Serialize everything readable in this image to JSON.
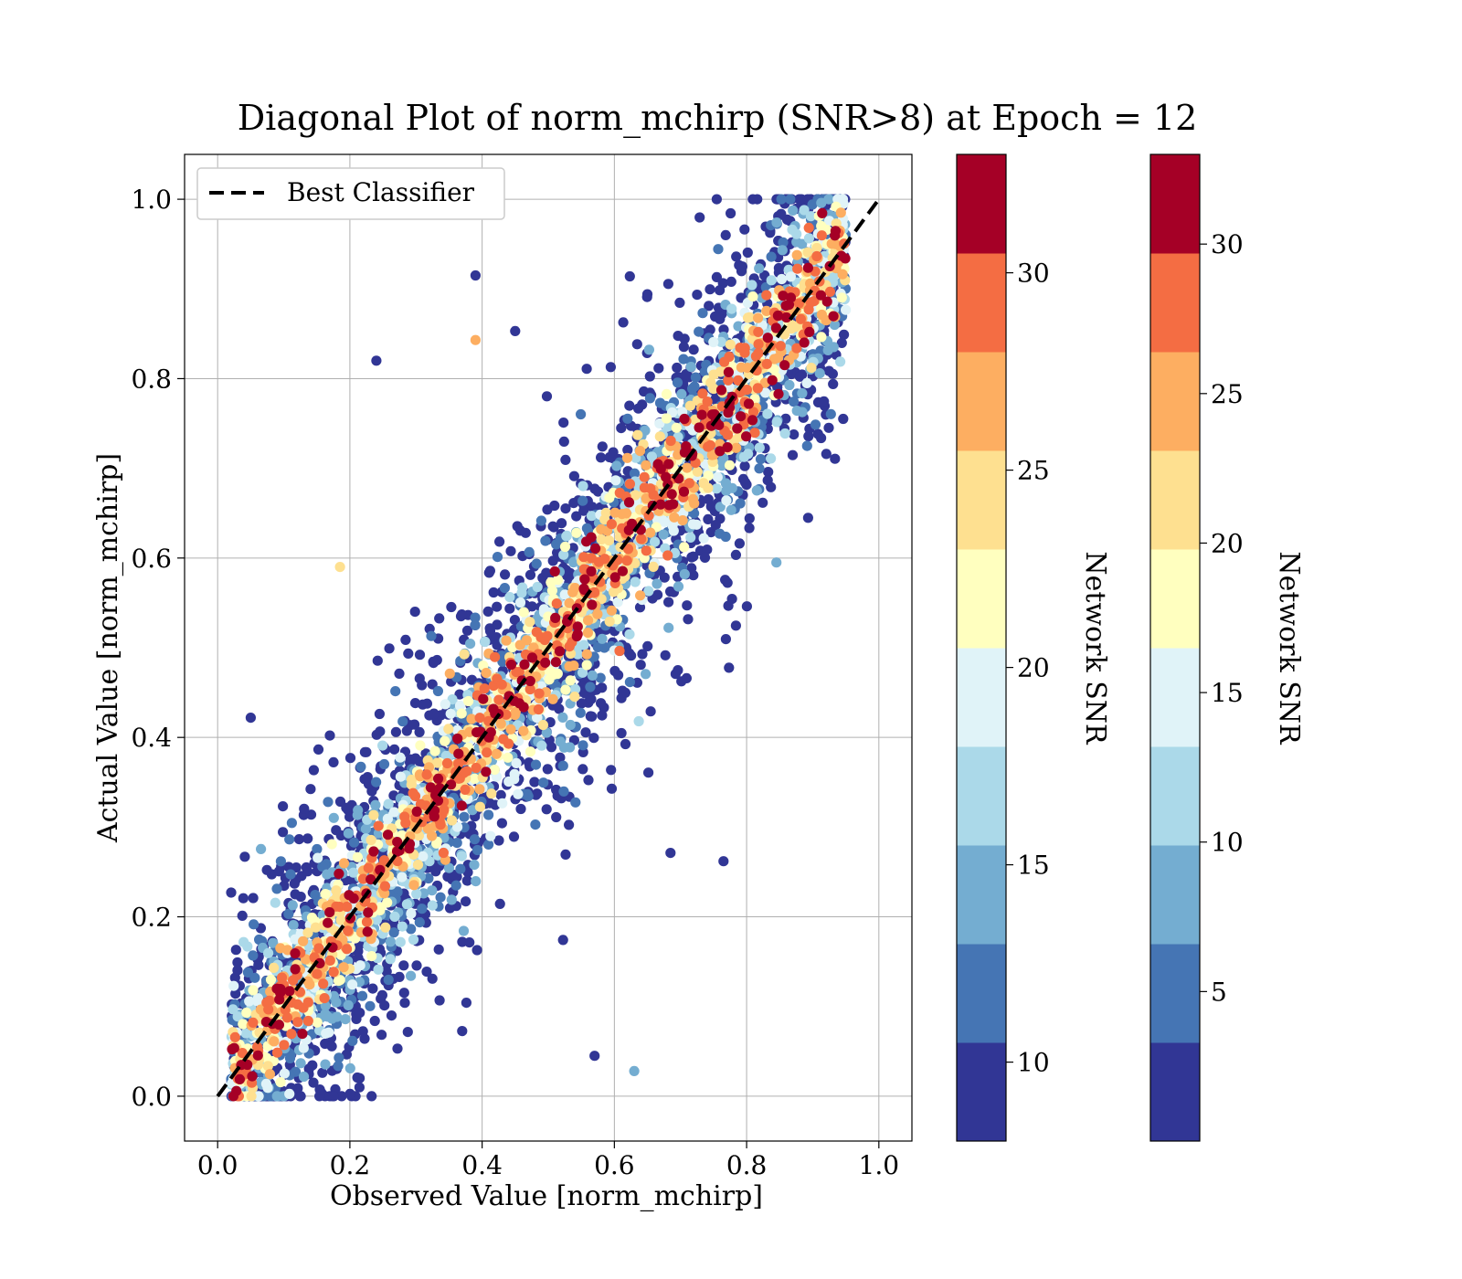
{
  "chart_data": {
    "type": "scatter",
    "title": "Diagonal Plot of norm_mchirp (SNR>8) at Epoch = 12",
    "xlabel": "Observed Value [norm_mchirp]",
    "ylabel": "Actual Value [norm_mchirp]",
    "xlim": [
      -0.05,
      1.05
    ],
    "ylim": [
      -0.05,
      1.05
    ],
    "xticks": [
      "0.0",
      "0.2",
      "0.4",
      "0.6",
      "0.8",
      "1.0"
    ],
    "yticks": [
      "0.0",
      "0.2",
      "0.4",
      "0.6",
      "0.8",
      "1.0"
    ],
    "grid": true,
    "legend": {
      "placement": "upper-left",
      "entries": [
        "Best Classifier"
      ]
    },
    "reference_line": {
      "name": "Best Classifier",
      "style": "dashed",
      "color": "#000000",
      "x": [
        0,
        1
      ],
      "y": [
        0,
        1
      ]
    },
    "colorbars": [
      {
        "label": "Network SNR",
        "range": [
          8,
          33
        ],
        "ticks": [
          "10",
          "15",
          "20",
          "25",
          "30"
        ],
        "tick_values": [
          10,
          15,
          20,
          25,
          30
        ],
        "colors": [
          "#313695",
          "#4575b4",
          "#74add1",
          "#abd9e9",
          "#e0f3f8",
          "#ffffbf",
          "#fee090",
          "#fdae61",
          "#f46d43",
          "#a50026"
        ]
      },
      {
        "label": "Network SNR",
        "range": [
          0,
          33
        ],
        "ticks": [
          "5",
          "10",
          "15",
          "20",
          "25",
          "30"
        ],
        "tick_values": [
          5,
          10,
          15,
          20,
          25,
          30
        ],
        "colors": [
          "#313695",
          "#4575b4",
          "#74add1",
          "#abd9e9",
          "#e0f3f8",
          "#ffffbf",
          "#fee090",
          "#fdae61",
          "#f46d43",
          "#a50026"
        ]
      }
    ],
    "points": {
      "count": 5000,
      "relation": "actual ≈ observed with scatter; higher SNR points lie closer to the diagonal",
      "highlighted": [
        {
          "x": 0.39,
          "y": 0.915,
          "snr": 9
        },
        {
          "x": 0.39,
          "y": 0.843,
          "snr": 26
        },
        {
          "x": 0.24,
          "y": 0.82,
          "snr": 9
        },
        {
          "x": 0.45,
          "y": 0.853,
          "snr": 9
        },
        {
          "x": 0.51,
          "y": 0.585,
          "snr": 32
        },
        {
          "x": 0.83,
          "y": 0.893,
          "snr": 29
        },
        {
          "x": 0.185,
          "y": 0.59,
          "snr": 24
        },
        {
          "x": 0.05,
          "y": 0.422,
          "snr": 9
        },
        {
          "x": 0.63,
          "y": 0.028,
          "snr": 14
        },
        {
          "x": 0.57,
          "y": 0.045,
          "snr": 9
        },
        {
          "x": 0.765,
          "y": 0.262,
          "snr": 9
        },
        {
          "x": 0.44,
          "y": 0.393,
          "snr": 29
        },
        {
          "x": 0.045,
          "y": 0.035,
          "snr": 31
        },
        {
          "x": 0.845,
          "y": 0.595,
          "snr": 13
        }
      ]
    }
  }
}
